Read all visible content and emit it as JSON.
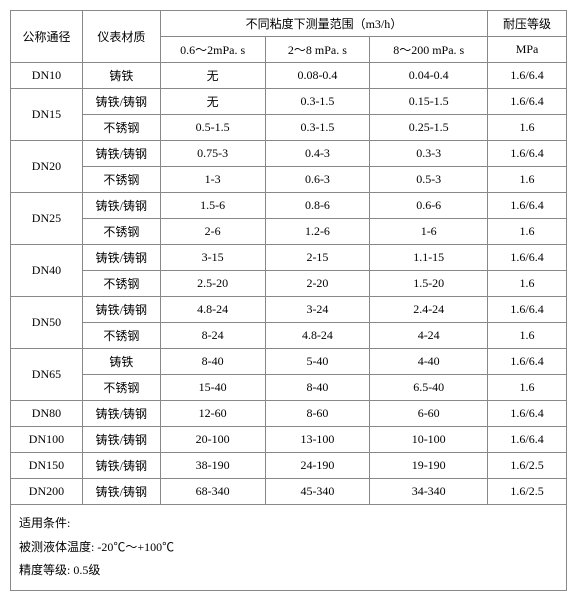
{
  "headers": {
    "nominal_diameter": "公称通径",
    "material": "仪表材质",
    "range_group": "不同粘度下测量范围（m3/h）",
    "visc1": "0.6～2mPa. s",
    "visc2": "2～8 mPa. s",
    "visc3": "8～200 mPa. s",
    "pressure": "耐压等级",
    "pressure_unit": "MPa"
  },
  "rows": [
    {
      "dn": "DN10",
      "dn_rowspan": 1,
      "mat": "铸铁",
      "v1": "无",
      "v2": "0.08-0.4",
      "v3": "0.04-0.4",
      "p": "1.6/6.4"
    },
    {
      "dn": "DN15",
      "dn_rowspan": 2,
      "mat": "铸铁/铸钢",
      "v1": "无",
      "v2": "0.3-1.5",
      "v3": "0.15-1.5",
      "p": "1.6/6.4"
    },
    {
      "dn": "",
      "dn_rowspan": 0,
      "mat": "不锈钢",
      "v1": "0.5-1.5",
      "v2": "0.3-1.5",
      "v3": "0.25-1.5",
      "p": "1.6"
    },
    {
      "dn": "DN20",
      "dn_rowspan": 2,
      "mat": "铸铁/铸钢",
      "v1": "0.75-3",
      "v2": "0.4-3",
      "v3": "0.3-3",
      "p": "1.6/6.4"
    },
    {
      "dn": "",
      "dn_rowspan": 0,
      "mat": "不锈钢",
      "v1": "1-3",
      "v2": "0.6-3",
      "v3": "0.5-3",
      "p": "1.6"
    },
    {
      "dn": "DN25",
      "dn_rowspan": 2,
      "mat": "铸铁/铸钢",
      "v1": "1.5-6",
      "v2": "0.8-6",
      "v3": "0.6-6",
      "p": "1.6/6.4"
    },
    {
      "dn": "",
      "dn_rowspan": 0,
      "mat": "不锈钢",
      "v1": "2-6",
      "v2": "1.2-6",
      "v3": "1-6",
      "p": "1.6"
    },
    {
      "dn": "DN40",
      "dn_rowspan": 2,
      "mat": "铸铁/铸钢",
      "v1": "3-15",
      "v2": "2-15",
      "v3": "1.1-15",
      "p": "1.6/6.4"
    },
    {
      "dn": "",
      "dn_rowspan": 0,
      "mat": "不锈钢",
      "v1": "2.5-20",
      "v2": "2-20",
      "v3": "1.5-20",
      "p": "1.6"
    },
    {
      "dn": "DN50",
      "dn_rowspan": 2,
      "mat": "铸铁/铸钢",
      "v1": "4.8-24",
      "v2": "3-24",
      "v3": "2.4-24",
      "p": "1.6/6.4"
    },
    {
      "dn": "",
      "dn_rowspan": 0,
      "mat": "不锈钢",
      "v1": "8-24",
      "v2": "4.8-24",
      "v3": "4-24",
      "p": "1.6"
    },
    {
      "dn": "DN65",
      "dn_rowspan": 2,
      "mat": "铸铁",
      "v1": "8-40",
      "v2": "5-40",
      "v3": "4-40",
      "p": "1.6/6.4"
    },
    {
      "dn": "",
      "dn_rowspan": 0,
      "mat": "不锈钢",
      "v1": "15-40",
      "v2": "8-40",
      "v3": "6.5-40",
      "p": "1.6"
    },
    {
      "dn": "DN80",
      "dn_rowspan": 1,
      "mat": "铸铁/铸钢",
      "v1": "12-60",
      "v2": "8-60",
      "v3": "6-60",
      "p": "1.6/6.4"
    },
    {
      "dn": "DN100",
      "dn_rowspan": 1,
      "mat": "铸铁/铸钢",
      "v1": "20-100",
      "v2": "13-100",
      "v3": "10-100",
      "p": "1.6/6.4"
    },
    {
      "dn": "DN150",
      "dn_rowspan": 1,
      "mat": "铸铁/铸钢",
      "v1": "38-190",
      "v2": "24-190",
      "v3": "19-190",
      "p": "1.6/2.5"
    },
    {
      "dn": "DN200",
      "dn_rowspan": 1,
      "mat": "铸铁/铸钢",
      "v1": "68-340",
      "v2": "45-340",
      "v3": "34-340",
      "p": "1.6/2.5"
    }
  ],
  "footer": {
    "line1": "适用条件:",
    "line2_label": "被测液体温度:",
    "line2_value": "-20℃～+100℃",
    "line3_label": "精度等级:",
    "line3_value": "0.5级"
  },
  "col_widths": {
    "dn": "72px",
    "mat": "78px",
    "v1": "105px",
    "v2": "105px",
    "v3": "118px",
    "p": "79px"
  }
}
